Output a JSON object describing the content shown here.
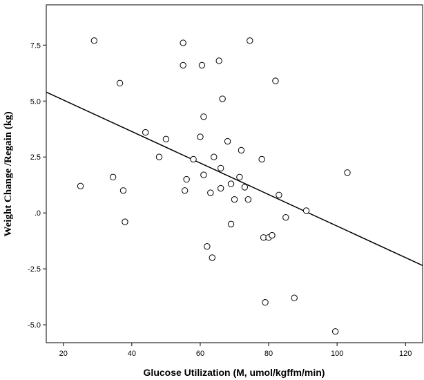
{
  "chart_data": {
    "type": "scatter",
    "title": "",
    "xlabel": "Glucose Utilization (M, umol/kgffm/min)",
    "ylabel": "Weight Change /Regain (kg)",
    "xlim": [
      15,
      125
    ],
    "ylim": [
      -5.8,
      9.3
    ],
    "x_ticks": [
      20,
      40,
      60,
      80,
      100,
      120
    ],
    "x_tick_labels": [
      "20",
      "40",
      "60",
      "80",
      "100",
      "120"
    ],
    "y_ticks": [
      7.5,
      5.0,
      2.5,
      0.0,
      -2.5,
      -5.0
    ],
    "y_tick_labels": [
      "7.5",
      "5.0",
      "2.5",
      ".0",
      "-2.5",
      "-5.0"
    ],
    "grid": false,
    "marker": "open-circle",
    "points": [
      {
        "x": 29.0,
        "y": 7.7
      },
      {
        "x": 55.0,
        "y": 7.6
      },
      {
        "x": 74.5,
        "y": 7.7
      },
      {
        "x": 55.0,
        "y": 6.6
      },
      {
        "x": 60.5,
        "y": 6.6
      },
      {
        "x": 65.5,
        "y": 6.8
      },
      {
        "x": 36.5,
        "y": 5.8
      },
      {
        "x": 82.0,
        "y": 5.9
      },
      {
        "x": 66.5,
        "y": 5.1
      },
      {
        "x": 61.0,
        "y": 4.3
      },
      {
        "x": 44.0,
        "y": 3.6
      },
      {
        "x": 50.0,
        "y": 3.3
      },
      {
        "x": 60.0,
        "y": 3.4
      },
      {
        "x": 68.0,
        "y": 3.2
      },
      {
        "x": 72.0,
        "y": 2.8
      },
      {
        "x": 48.0,
        "y": 2.5
      },
      {
        "x": 58.0,
        "y": 2.4
      },
      {
        "x": 64.0,
        "y": 2.5
      },
      {
        "x": 78.0,
        "y": 2.4
      },
      {
        "x": 66.0,
        "y": 2.0
      },
      {
        "x": 61.0,
        "y": 1.7
      },
      {
        "x": 103.0,
        "y": 1.8
      },
      {
        "x": 34.5,
        "y": 1.6
      },
      {
        "x": 56.0,
        "y": 1.5
      },
      {
        "x": 71.5,
        "y": 1.6
      },
      {
        "x": 25.0,
        "y": 1.2
      },
      {
        "x": 69.0,
        "y": 1.3
      },
      {
        "x": 37.5,
        "y": 1.0
      },
      {
        "x": 55.5,
        "y": 1.0
      },
      {
        "x": 66.0,
        "y": 1.1
      },
      {
        "x": 73.0,
        "y": 1.15
      },
      {
        "x": 63.0,
        "y": 0.9
      },
      {
        "x": 83.0,
        "y": 0.8
      },
      {
        "x": 70.0,
        "y": 0.6
      },
      {
        "x": 74.0,
        "y": 0.6
      },
      {
        "x": 91.0,
        "y": 0.1
      },
      {
        "x": 85.0,
        "y": -0.2
      },
      {
        "x": 38.0,
        "y": -0.4
      },
      {
        "x": 69.0,
        "y": -0.5
      },
      {
        "x": 78.5,
        "y": -1.1
      },
      {
        "x": 80.0,
        "y": -1.1
      },
      {
        "x": 81.0,
        "y": -1.0
      },
      {
        "x": 62.0,
        "y": -1.5
      },
      {
        "x": 63.5,
        "y": -2.0
      },
      {
        "x": 79.0,
        "y": -4.0
      },
      {
        "x": 87.5,
        "y": -3.8
      },
      {
        "x": 99.5,
        "y": -5.3
      }
    ],
    "fit_line": {
      "x": [
        15,
        125
      ],
      "y": [
        5.4,
        -2.35
      ]
    }
  }
}
